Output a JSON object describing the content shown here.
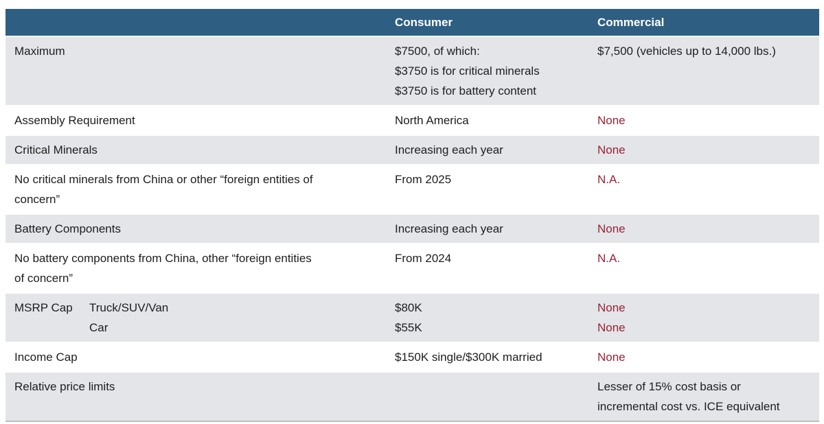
{
  "colors": {
    "header_bg": "#2e5f82",
    "alt_row_bg": "#e3e5e8",
    "body_text": "#1d1d1f",
    "negative_value_red": "#9b2135",
    "bottom_border": "#babdc0"
  },
  "chart_data": {
    "type": "table",
    "title": "",
    "columns": [
      "",
      "Consumer",
      "Commercial"
    ],
    "rows": [
      {
        "label": "Maximum",
        "consumer": "$7500, of which:\n$3750 is for critical minerals\n$3750 is for battery content",
        "commercial": "$7,500 (vehicles up to 14,000 lbs.)"
      },
      {
        "label": "Assembly Requirement",
        "consumer": "North America",
        "commercial": "None"
      },
      {
        "label": "Critical Minerals",
        "consumer": "Increasing each year",
        "commercial": "None"
      },
      {
        "label": "No critical minerals from China or other “foreign entities of\nconcern”",
        "consumer": "From 2025",
        "commercial": "N.A."
      },
      {
        "label": "Battery Components",
        "consumer": "Increasing each year",
        "commercial": "None"
      },
      {
        "label": "No battery components from China, other “foreign entities\nof concern”",
        "consumer": "From 2024",
        "commercial": "N.A."
      },
      {
        "label": "MSRP Cap",
        "sublabel": "Truck/SUV/Van\nCar",
        "consumer": "$80K\n$55K",
        "commercial": "None\nNone"
      },
      {
        "label": "Income Cap",
        "consumer": "$150K single/$300K married",
        "commercial": "None"
      },
      {
        "label": "Relative price limits",
        "consumer": "",
        "commercial": "Lesser of 15% cost basis or\nincremental cost vs. ICE equivalent"
      }
    ]
  }
}
